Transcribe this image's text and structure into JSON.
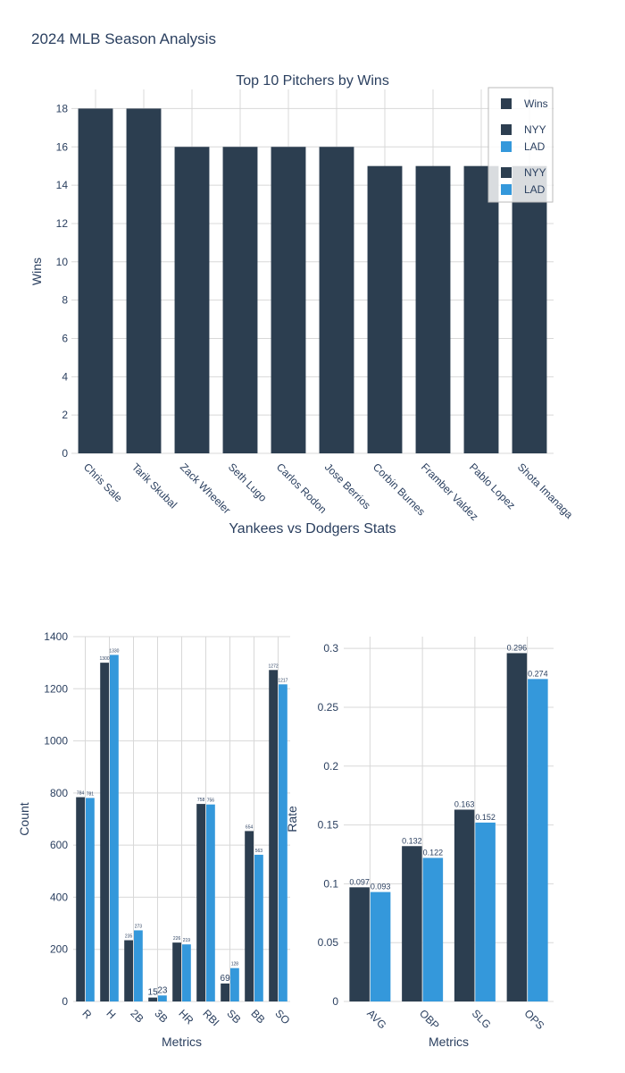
{
  "page_title": "2024 MLB Season Analysis",
  "colors": {
    "nyy": "#2c3e50",
    "lad": "#3498db",
    "wins": "#2c3e50",
    "grid": "#d8d8d8"
  },
  "chart_data": [
    {
      "type": "bar",
      "title": "Top 10 Pitchers by Wins",
      "xlabel": "",
      "ylabel": "Wins",
      "ylim": [
        0,
        19
      ],
      "yticks": [
        0,
        2,
        4,
        6,
        8,
        10,
        12,
        14,
        16,
        18
      ],
      "categories": [
        "Chris Sale",
        "Tarik Skubal",
        "Zack Wheeler",
        "Seth Lugo",
        "Carlos Rodon",
        "Jose Berrios",
        "Corbin Burnes",
        "Framber Valdez",
        "Pablo Lopez",
        "Shota Imanaga"
      ],
      "series": [
        {
          "name": "Wins",
          "values": [
            18,
            18,
            16,
            16,
            16,
            16,
            15,
            15,
            15,
            15
          ]
        }
      ],
      "legend": [
        "Wins",
        "NYY",
        "LAD",
        "NYY",
        "LAD"
      ],
      "legend_position": "top-right",
      "grid": true
    },
    {
      "type": "bar",
      "title": "Yankees vs Dodgers Stats",
      "xlabel": "Metrics",
      "ylabel": "Count",
      "ylim": [
        0,
        1400
      ],
      "yticks": [
        0,
        200,
        400,
        600,
        800,
        1000,
        1200,
        1400
      ],
      "categories": [
        "R",
        "H",
        "2B",
        "3B",
        "HR",
        "RBI",
        "SB",
        "BB",
        "SO"
      ],
      "series": [
        {
          "name": "NYY",
          "values": [
            784,
            1300,
            235,
            15,
            226,
            758,
            69,
            654,
            1272
          ]
        },
        {
          "name": "LAD",
          "values": [
            781,
            1330,
            273,
            23,
            219,
            756,
            128,
            563,
            1217
          ]
        }
      ],
      "grid": true
    },
    {
      "type": "bar",
      "title": "",
      "xlabel": "Metrics",
      "ylabel": "Rate",
      "ylim": [
        0,
        0.31
      ],
      "yticks": [
        "0",
        "0.05",
        "0.1",
        "0.15",
        "0.2",
        "0.25",
        "0.3"
      ],
      "categories": [
        "AVG",
        "OBP",
        "SLG",
        "OPS"
      ],
      "series": [
        {
          "name": "NYY",
          "values": [
            0.097,
            0.132,
            0.163,
            0.296
          ]
        },
        {
          "name": "LAD",
          "values": [
            0.093,
            0.122,
            0.152,
            0.274
          ]
        }
      ],
      "grid": true
    }
  ]
}
